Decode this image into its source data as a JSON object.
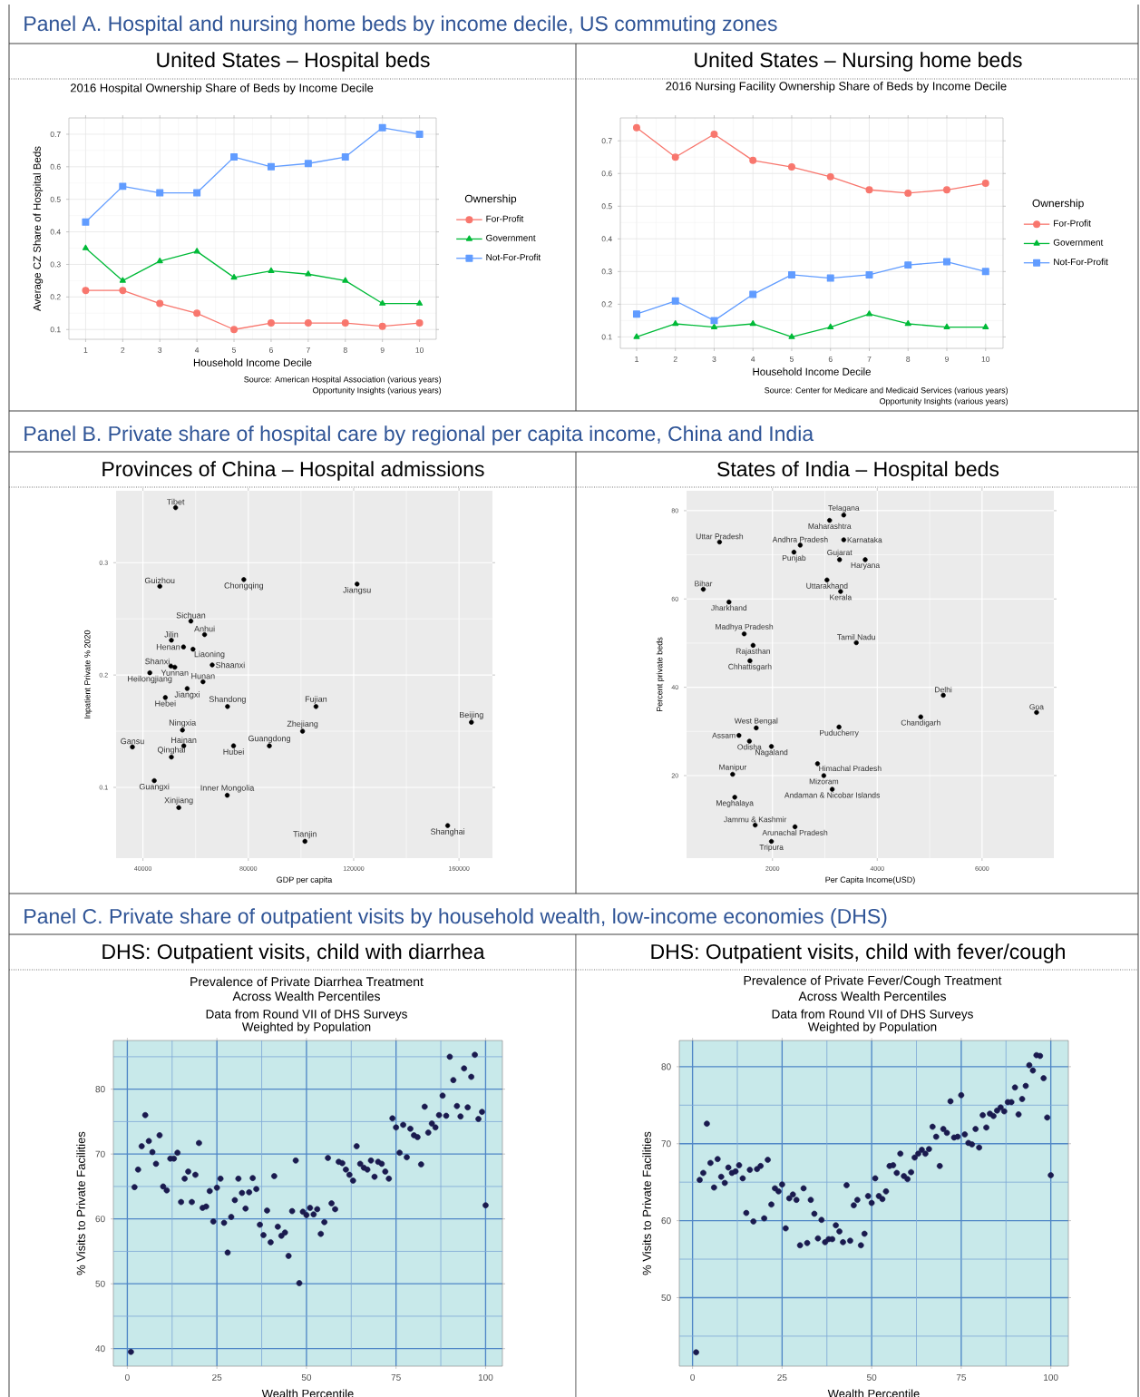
{
  "chart_data": [
    {
      "type": "line",
      "title": "2016 Hospital Ownership Share of Beds by Income Decile",
      "xlabel": "Household Income Decile",
      "ylabel": "Average CZ Share of Hospital Beds",
      "legend_title": "Ownership",
      "annotations": [
        "Panel A. Hospital and nursing home beds by income decile, US commuting zones",
        "United States – Hospital beds",
        "Source: American Hospital Association (various years)",
        "Opportunity Insights (various years)"
      ],
      "x": [
        1,
        2,
        3,
        4,
        5,
        6,
        7,
        8,
        9,
        10
      ],
      "series": [
        {
          "name": "For-Profit",
          "color": "#F8766D",
          "marker": "circle",
          "values": [
            0.22,
            0.22,
            0.18,
            0.15,
            0.1,
            0.12,
            0.12,
            0.12,
            0.11,
            0.12
          ]
        },
        {
          "name": "Government",
          "color": "#00BA38",
          "marker": "triangle",
          "values": [
            0.35,
            0.25,
            0.31,
            0.34,
            0.26,
            0.28,
            0.27,
            0.25,
            0.18,
            0.18
          ]
        },
        {
          "name": "Not-For-Profit",
          "color": "#619CFF",
          "marker": "square",
          "values": [
            0.43,
            0.54,
            0.52,
            0.52,
            0.63,
            0.6,
            0.61,
            0.63,
            0.72,
            0.7
          ]
        }
      ],
      "xlim": [
        0.55,
        10.45
      ],
      "ylim": [
        0.07,
        0.75
      ],
      "xticks": [
        1,
        2,
        3,
        4,
        5,
        6,
        7,
        8,
        9,
        10
      ],
      "yticks": [
        0.1,
        0.2,
        0.3,
        0.4,
        0.5,
        0.6,
        0.7
      ],
      "grid": true,
      "legend": "right",
      "line_style": "solid"
    },
    {
      "type": "line",
      "title": "2016 Nursing Facility Ownership Share of Beds by Income Decile",
      "xlabel": "Household Income Decile",
      "legend_title": "Ownership",
      "annotations": [
        "United States – Nursing home beds",
        "Source: Center for Medicare and Medicaid Services (various years)",
        "Opportunity Insights (various years)"
      ],
      "x": [
        1,
        2,
        3,
        4,
        5,
        6,
        7,
        8,
        9,
        10
      ],
      "series": [
        {
          "name": "For-Profit",
          "color": "#F8766D",
          "marker": "circle",
          "values": [
            0.74,
            0.65,
            0.72,
            0.64,
            0.62,
            0.59,
            0.55,
            0.54,
            0.55,
            0.57
          ]
        },
        {
          "name": "Government",
          "color": "#00BA38",
          "marker": "triangle",
          "values": [
            0.1,
            0.14,
            0.13,
            0.14,
            0.1,
            0.13,
            0.17,
            0.14,
            0.13,
            0.13
          ]
        },
        {
          "name": "Not-For-Profit",
          "color": "#619CFF",
          "marker": "square",
          "values": [
            0.17,
            0.21,
            0.15,
            0.23,
            0.29,
            0.28,
            0.29,
            0.32,
            0.33,
            0.3
          ]
        }
      ],
      "xlim": [
        0.58,
        10.45
      ],
      "ylim": [
        0.065,
        0.77
      ],
      "xticks": [
        1,
        2,
        3,
        4,
        5,
        6,
        7,
        8,
        9,
        10
      ],
      "yticks": [
        0.1,
        0.2,
        0.3,
        0.4,
        0.5,
        0.6,
        0.7
      ],
      "grid": true,
      "legend": "right",
      "line_style": "solid"
    },
    {
      "type": "scatter",
      "xlabel": "GDP per capita",
      "ylabel": "Inpatient Private % 2020",
      "color": "#000000",
      "x": [
        52400,
        46400,
        78300,
        121300,
        58200,
        63400,
        50800,
        55400,
        59000,
        50600,
        52100,
        66300,
        42600,
        62800,
        56800,
        48500,
        72100,
        105700,
        164700,
        100600,
        55000,
        36000,
        55500,
        74400,
        88000,
        50800,
        44300,
        72000,
        53600,
        101500,
        155700
      ],
      "values": [
        0.349,
        0.279,
        0.285,
        0.281,
        0.248,
        0.236,
        0.231,
        0.225,
        0.223,
        0.208,
        0.207,
        0.209,
        0.202,
        0.194,
        0.188,
        0.18,
        0.172,
        0.172,
        0.158,
        0.15,
        0.151,
        0.136,
        0.137,
        0.137,
        0.137,
        0.127,
        0.106,
        0.093,
        0.082,
        0.052,
        0.066
      ],
      "annotations": [
        "Panel B. Private share of hospital care by regional per capita income, China and India",
        "Provinces of China – Hospital admissions",
        {
          "text": "Tibet",
          "x": 52400,
          "y": 0.349
        },
        {
          "text": "Guizhou",
          "x": 46400,
          "y": 0.279
        },
        {
          "text": "Chongqing",
          "x": 78300,
          "y": 0.285
        },
        {
          "text": "Jiangsu",
          "x": 121300,
          "y": 0.281
        },
        {
          "text": "Sichuan",
          "x": 58200,
          "y": 0.248
        },
        {
          "text": "Anhui",
          "x": 63400,
          "y": 0.236
        },
        {
          "text": "Jilin",
          "x": 50800,
          "y": 0.231
        },
        {
          "text": "Henan",
          "x": 55400,
          "y": 0.225
        },
        {
          "text": "Liaoning",
          "x": 59000,
          "y": 0.223
        },
        {
          "text": "Shanxi",
          "x": 50600,
          "y": 0.208
        },
        {
          "text": "Yunnan",
          "x": 52100,
          "y": 0.207
        },
        {
          "text": "Shaanxi",
          "x": 66300,
          "y": 0.209
        },
        {
          "text": "Heilongjiang",
          "x": 42600,
          "y": 0.202
        },
        {
          "text": "Hunan",
          "x": 62800,
          "y": 0.194
        },
        {
          "text": "Jiangxi",
          "x": 56800,
          "y": 0.188
        },
        {
          "text": "Hebei",
          "x": 48500,
          "y": 0.18
        },
        {
          "text": "Shandong",
          "x": 72100,
          "y": 0.172
        },
        {
          "text": "Fujian",
          "x": 105700,
          "y": 0.172
        },
        {
          "text": "Beijing",
          "x": 164700,
          "y": 0.158
        },
        {
          "text": "Zhejiang",
          "x": 100600,
          "y": 0.15
        },
        {
          "text": "Ningxia",
          "x": 55000,
          "y": 0.151
        },
        {
          "text": "Gansu",
          "x": 36000,
          "y": 0.136
        },
        {
          "text": "Hainan",
          "x": 55500,
          "y": 0.137
        },
        {
          "text": "Hubei",
          "x": 74400,
          "y": 0.137
        },
        {
          "text": "Guangdong",
          "x": 88000,
          "y": 0.137
        },
        {
          "text": "Qinghai",
          "x": 50800,
          "y": 0.127
        },
        {
          "text": "Guangxi",
          "x": 44300,
          "y": 0.106
        },
        {
          "text": "Inner Mongolia",
          "x": 72000,
          "y": 0.093
        },
        {
          "text": "Xinjiang",
          "x": 53600,
          "y": 0.082
        },
        {
          "text": "Tianjin",
          "x": 101500,
          "y": 0.052
        },
        {
          "text": "Shanghai",
          "x": 155700,
          "y": 0.066
        }
      ],
      "xlim": [
        29800,
        172700
      ],
      "ylim": [
        0.037,
        0.364
      ],
      "xticks": [
        40000,
        80000,
        120000,
        160000
      ],
      "yticks": [
        0.1,
        0.2,
        0.3
      ],
      "grid": true
    },
    {
      "type": "scatter",
      "xlabel": "Per Capita Income(USD)",
      "ylabel": "Percent private beds",
      "color": "#000000",
      "x": [
        3360,
        3090,
        990,
        2530,
        3360,
        2410,
        3280,
        3770,
        680,
        3040,
        3300,
        1170,
        1460,
        1630,
        1570,
        3600,
        5260,
        7040,
        4830,
        1690,
        3270,
        1360,
        1560,
        1980,
        2860,
        1240,
        2980,
        3140,
        1280,
        1670,
        2430,
        1980
      ],
      "values": [
        79.0,
        77.8,
        72.9,
        72.2,
        73.4,
        70.6,
        68.9,
        68.9,
        62.2,
        64.3,
        61.7,
        59.3,
        52.1,
        49.5,
        46.0,
        50.1,
        38.2,
        34.3,
        33.3,
        30.8,
        31.0,
        29.1,
        27.8,
        26.6,
        22.7,
        20.3,
        20.0,
        16.9,
        15.1,
        8.8,
        8.4,
        5.1
      ],
      "annotations": [
        "States of India – Hospital beds",
        {
          "text": "Telagana",
          "x": 3360,
          "y": 79.0
        },
        {
          "text": "Maharashtra",
          "x": 3090,
          "y": 77.8
        },
        {
          "text": "Uttar Pradesh",
          "x": 990,
          "y": 72.9
        },
        {
          "text": "Andhra Pradesh",
          "x": 2530,
          "y": 72.2
        },
        {
          "text": "Karnataka",
          "x": 3360,
          "y": 73.4
        },
        {
          "text": "Punjab",
          "x": 2410,
          "y": 70.6
        },
        {
          "text": "Gujarat",
          "x": 3280,
          "y": 68.9
        },
        {
          "text": "Haryana",
          "x": 3770,
          "y": 68.9
        },
        {
          "text": "Bihar",
          "x": 680,
          "y": 62.2
        },
        {
          "text": "Uttarakhand",
          "x": 3040,
          "y": 64.3
        },
        {
          "text": "Kerala",
          "x": 3300,
          "y": 61.7
        },
        {
          "text": "Jharkhand",
          "x": 1170,
          "y": 59.3
        },
        {
          "text": "Madhya Pradesh",
          "x": 1460,
          "y": 52.1
        },
        {
          "text": "Rajasthan",
          "x": 1630,
          "y": 49.5
        },
        {
          "text": "Chhattisgarh",
          "x": 1570,
          "y": 46.0
        },
        {
          "text": "Tamil Nadu",
          "x": 3600,
          "y": 50.1
        },
        {
          "text": "Delhi",
          "x": 5260,
          "y": 38.2
        },
        {
          "text": "Goa",
          "x": 7040,
          "y": 34.3
        },
        {
          "text": "Chandigarh",
          "x": 4830,
          "y": 33.3
        },
        {
          "text": "West Bengal",
          "x": 1690,
          "y": 30.8
        },
        {
          "text": "Puducherry",
          "x": 3270,
          "y": 31.0
        },
        {
          "text": "Assam",
          "x": 1360,
          "y": 29.1
        },
        {
          "text": "Odisha",
          "x": 1560,
          "y": 27.8
        },
        {
          "text": "Nagaland",
          "x": 1980,
          "y": 26.6
        },
        {
          "text": "Himachal Pradesh",
          "x": 2860,
          "y": 22.7
        },
        {
          "text": "Manipur",
          "x": 1240,
          "y": 20.3
        },
        {
          "text": "Mizoram",
          "x": 2980,
          "y": 20.0
        },
        {
          "text": "Andaman & Nicobar Islands",
          "x": 3140,
          "y": 16.9
        },
        {
          "text": "Meghalaya",
          "x": 1280,
          "y": 15.1
        },
        {
          "text": "Jammu & Kashmir",
          "x": 1670,
          "y": 8.8
        },
        {
          "text": "Arunachal Pradesh",
          "x": 2430,
          "y": 8.4
        },
        {
          "text": "Tripura",
          "x": 1980,
          "y": 5.1
        }
      ],
      "xlim": [
        360,
        7370
      ],
      "ylim": [
        1.3,
        84.5
      ],
      "xticks": [
        2000,
        4000,
        6000
      ],
      "yticks": [
        20,
        40,
        60,
        80
      ],
      "grid": true
    },
    {
      "type": "scatter",
      "title": "Prevalence of Private Diarrhea Treatment",
      "subtitle": "Across Wealth Percentiles",
      "xlabel": "Wealth Percentile",
      "ylabel": "% Visits to Private Facilities",
      "color": "#1A1A4E",
      "annotations": [
        "Panel C. Private share of outpatient visits by household wealth, low-income economies (DHS)",
        "DHS: Outpatient visits, child with diarrhea",
        "Data from Round VII of DHS Surveys",
        "Weighted by Population"
      ],
      "x": [
        1,
        2,
        3,
        4,
        5,
        6,
        7,
        8,
        9,
        10,
        11,
        12,
        13,
        14,
        15,
        16,
        17,
        18,
        19,
        20,
        21,
        22,
        23,
        24,
        25,
        26,
        27,
        28,
        29,
        30,
        31,
        32,
        33,
        34,
        35,
        36,
        37,
        38,
        39,
        40,
        41,
        42,
        43,
        44,
        45,
        46,
        47,
        48,
        49,
        50,
        51,
        52,
        53,
        54,
        55,
        56,
        57,
        58,
        59,
        60,
        61,
        62,
        63,
        64,
        65,
        66,
        67,
        68,
        69,
        70,
        71,
        72,
        73,
        74,
        75,
        76,
        77,
        78,
        79,
        80,
        81,
        82,
        83,
        84,
        85,
        86,
        87,
        88,
        89,
        90,
        91,
        92,
        93,
        94,
        95,
        96,
        97,
        98,
        99,
        100
      ],
      "values": [
        39.5,
        64.9,
        67.6,
        71.2,
        76.0,
        72.0,
        70.3,
        68.5,
        72.9,
        65.0,
        64.4,
        69.3,
        69.3,
        70.2,
        62.6,
        66.2,
        67.3,
        62.6,
        66.8,
        71.7,
        61.7,
        61.9,
        64.3,
        59.6,
        64.8,
        66.2,
        59.4,
        54.8,
        60.3,
        62.9,
        66.2,
        64.0,
        61.6,
        64.1,
        66.3,
        64.6,
        59.1,
        57.5,
        61.3,
        56.4,
        66.6,
        58.8,
        57.4,
        57.9,
        54.3,
        61.2,
        69.0,
        50.1,
        61.1,
        60.6,
        61.7,
        60.7,
        61.5,
        57.7,
        59.5,
        69.4,
        62.4,
        61.5,
        68.8,
        68.6,
        67.6,
        66.8,
        65.9,
        71.2,
        68.5,
        67.9,
        67.6,
        69.0,
        66.5,
        68.8,
        68.5,
        67.3,
        66.2,
        75.5,
        74.1,
        70.2,
        74.5,
        69.5,
        73.9,
        72.9,
        72.6,
        68.4,
        77.3,
        73.3,
        74.7,
        74.1,
        76.0,
        79.0,
        75.9,
        85.0,
        81.4,
        77.4,
        75.8,
        83.2,
        77.2,
        81.9,
        85.3,
        75.4,
        76.5,
        62.1
      ],
      "xlim": [
        -3.9,
        104.7
      ],
      "ylim": [
        37.3,
        87.5
      ],
      "xticks": [
        0,
        {
          "value": 12.5,
          "label": null
        },
        25,
        {
          "value": 37.5,
          "label": null
        },
        50,
        {
          "value": 62.5,
          "label": null
        },
        75,
        {
          "value": 87.5,
          "label": null
        },
        100
      ],
      "yticks": [
        40,
        {
          "value": 45,
          "label": null
        },
        50,
        {
          "value": 55,
          "label": null
        },
        60,
        {
          "value": 65,
          "label": null
        },
        70,
        {
          "value": 75,
          "label": null
        },
        80,
        {
          "value": 85,
          "label": null
        }
      ],
      "grid": true
    },
    {
      "type": "scatter",
      "title": "Prevalence of Private Fever/Cough Treatment",
      "subtitle": "Across Wealth Percentiles",
      "xlabel": "Wealth Percentile",
      "ylabel": "% Visits to Private Facilities",
      "color": "#1A1A4E",
      "annotations": [
        "DHS: Outpatient visits, child with fever/cough",
        "Data from Round VII of DHS Surveys",
        "Weighted by Population"
      ],
      "x": [
        1,
        2,
        3,
        4,
        5,
        6,
        7,
        8,
        9,
        10,
        11,
        12,
        13,
        14,
        15,
        16,
        17,
        18,
        19,
        20,
        21,
        22,
        23,
        24,
        25,
        26,
        27,
        28,
        29,
        30,
        31,
        32,
        33,
        34,
        35,
        36,
        37,
        38,
        39,
        40,
        41,
        42,
        43,
        44,
        45,
        46,
        47,
        48,
        49,
        50,
        51,
        52,
        53,
        54,
        55,
        56,
        57,
        58,
        59,
        60,
        61,
        62,
        63,
        64,
        65,
        66,
        67,
        68,
        69,
        70,
        71,
        72,
        73,
        74,
        75,
        76,
        77,
        78,
        79,
        80,
        81,
        82,
        83,
        84,
        85,
        86,
        87,
        88,
        89,
        90,
        91,
        92,
        93,
        94,
        95,
        96,
        97,
        98,
        99,
        100
      ],
      "values": [
        42.9,
        65.3,
        66.2,
        72.6,
        67.5,
        64.3,
        68.0,
        65.7,
        64.9,
        66.9,
        66.2,
        66.4,
        67.2,
        65.5,
        61.0,
        66.6,
        59.9,
        66.7,
        67.1,
        60.3,
        67.9,
        62.1,
        64.2,
        63.8,
        64.7,
        59.0,
        62.9,
        63.4,
        62.7,
        56.8,
        64.2,
        57.1,
        62.7,
        60.9,
        57.7,
        60.1,
        57.2,
        57.6,
        57.6,
        59.4,
        58.6,
        57.2,
        64.6,
        57.4,
        62.0,
        62.7,
        56.8,
        58.3,
        63.2,
        62.3,
        65.5,
        63.2,
        62.8,
        63.8,
        67.1,
        67.2,
        66.2,
        68.7,
        65.8,
        65.4,
        66.3,
        68.2,
        68.7,
        69.2,
        68.7,
        69.3,
        72.2,
        70.9,
        67.1,
        71.9,
        71.4,
        75.5,
        70.8,
        70.9,
        76.3,
        71.2,
        70.1,
        69.9,
        71.9,
        69.5,
        73.7,
        72.1,
        73.9,
        73.6,
        74.3,
        74.7,
        74.2,
        75.4,
        75.4,
        77.3,
        73.8,
        75.8,
        77.5,
        80.2,
        79.5,
        81.5,
        81.4,
        78.5,
        73.4,
        65.9
      ],
      "xlim": [
        -3.7,
        104.9
      ],
      "ylim": [
        41.1,
        83.4
      ],
      "xticks": [
        0,
        {
          "value": 12.5,
          "label": null
        },
        25,
        {
          "value": 37.5,
          "label": null
        },
        50,
        {
          "value": 62.5,
          "label": null
        },
        75,
        {
          "value": 87.5,
          "label": null
        },
        100
      ],
      "yticks": [
        {
          "value": 45,
          "label": null
        },
        50,
        {
          "value": 55,
          "label": null
        },
        60,
        {
          "value": 65,
          "label": null
        },
        70,
        {
          "value": 75,
          "label": null
        },
        80
      ],
      "grid": true
    }
  ]
}
